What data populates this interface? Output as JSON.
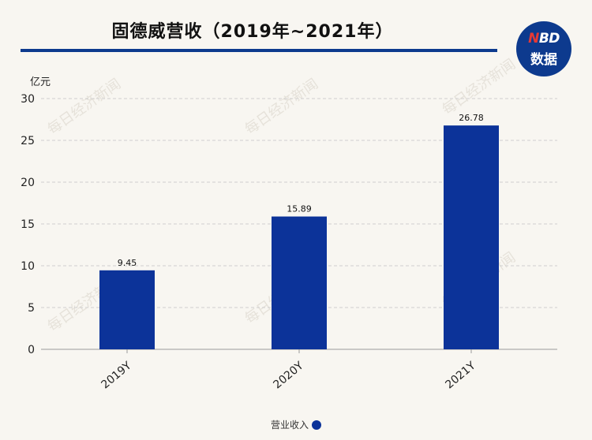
{
  "logo": {
    "line1_n": "N",
    "line1_rest": "BD",
    "line2": "数据"
  },
  "watermark": "每日经济新闻",
  "colors": {
    "bar": "#0c3399",
    "rule": "#0d3a8e",
    "grid": "#cfcfcf"
  },
  "chart_data": {
    "type": "bar",
    "title": "固德威营收（2019年~2021年）",
    "ylabel": "亿元",
    "xlabel": "",
    "categories": [
      "2019Y",
      "2020Y",
      "2021Y"
    ],
    "series": [
      {
        "name": "营业收入",
        "values": [
          9.45,
          15.89,
          26.78
        ],
        "labels": [
          "9.45",
          "15.89",
          "26.78"
        ]
      }
    ],
    "ylim": [
      0,
      30
    ],
    "yticks": [
      0,
      5,
      10,
      15,
      20,
      25,
      30
    ],
    "grid": true,
    "legend_position": "bottom-center"
  }
}
